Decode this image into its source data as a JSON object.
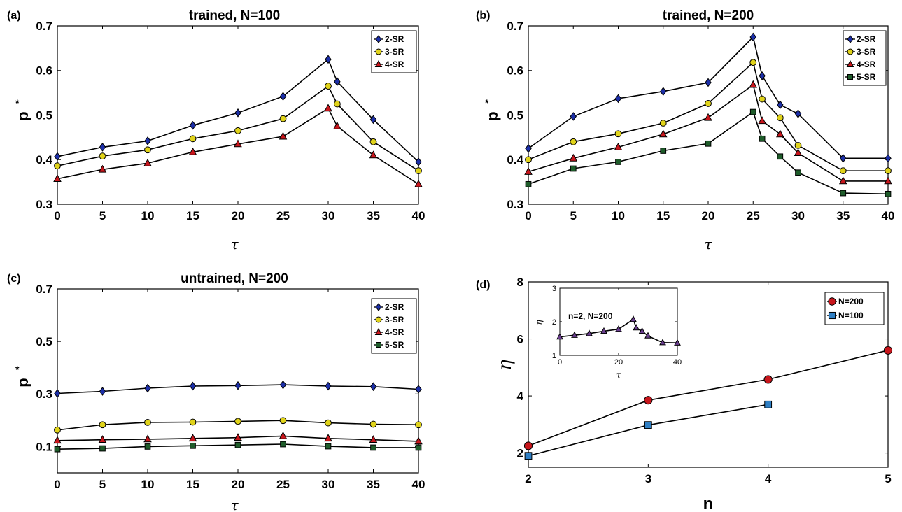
{
  "figure": {
    "colors": {
      "blue": "#1c2fa8",
      "yellow": "#e0d31a",
      "red": "#c8161c",
      "green": "#1e5c2a",
      "purple": "#6b3f8f",
      "lightblue": "#2f7fc4",
      "line": "#000000"
    }
  },
  "chart_data": [
    {
      "type": "line",
      "panel_label": "(a)",
      "title": "trained, N=100",
      "xlabel": "τ",
      "ylabel": "p",
      "ylabel_sup": "*",
      "xlim": [
        0,
        40
      ],
      "ylim": [
        0.3,
        0.7
      ],
      "xticks": [
        0,
        5,
        10,
        15,
        20,
        25,
        30,
        35,
        40
      ],
      "yticks": [
        0.3,
        0.4,
        0.5,
        0.6,
        0.7
      ],
      "legend_position": "top-right",
      "series": [
        {
          "name": "2-SR",
          "marker": "diamond",
          "color": "blue",
          "x": [
            0,
            5,
            10,
            15,
            20,
            25,
            30,
            31,
            35,
            40
          ],
          "y": [
            0.407,
            0.428,
            0.442,
            0.477,
            0.505,
            0.542,
            0.625,
            0.575,
            0.49,
            0.395
          ]
        },
        {
          "name": "3-SR",
          "marker": "circle",
          "color": "yellow",
          "x": [
            0,
            5,
            10,
            15,
            20,
            25,
            30,
            31,
            35,
            40
          ],
          "y": [
            0.386,
            0.408,
            0.422,
            0.447,
            0.465,
            0.492,
            0.565,
            0.525,
            0.44,
            0.375
          ]
        },
        {
          "name": "4-SR",
          "marker": "triangle",
          "color": "red",
          "x": [
            0,
            5,
            10,
            15,
            20,
            25,
            30,
            31,
            35,
            40
          ],
          "y": [
            0.357,
            0.378,
            0.392,
            0.417,
            0.435,
            0.452,
            0.515,
            0.475,
            0.41,
            0.345
          ]
        }
      ]
    },
    {
      "type": "line",
      "panel_label": "(b)",
      "title": "trained, N=200",
      "xlabel": "τ",
      "ylabel": "p",
      "ylabel_sup": "*",
      "xlim": [
        0,
        40
      ],
      "ylim": [
        0.3,
        0.7
      ],
      "xticks": [
        0,
        5,
        10,
        15,
        20,
        25,
        30,
        35,
        40
      ],
      "yticks": [
        0.3,
        0.4,
        0.5,
        0.6,
        0.7
      ],
      "legend_position": "top-right",
      "series": [
        {
          "name": "2-SR",
          "marker": "diamond",
          "color": "blue",
          "x": [
            0,
            5,
            10,
            15,
            20,
            25,
            26,
            28,
            30,
            35,
            40
          ],
          "y": [
            0.425,
            0.497,
            0.537,
            0.553,
            0.573,
            0.675,
            0.588,
            0.523,
            0.503,
            0.403,
            0.403
          ]
        },
        {
          "name": "3-SR",
          "marker": "circle",
          "color": "yellow",
          "x": [
            0,
            5,
            10,
            15,
            20,
            25,
            26,
            28,
            30,
            35,
            40
          ],
          "y": [
            0.4,
            0.44,
            0.458,
            0.482,
            0.526,
            0.618,
            0.536,
            0.494,
            0.432,
            0.375,
            0.375
          ]
        },
        {
          "name": "4-SR",
          "marker": "triangle",
          "color": "red",
          "x": [
            0,
            5,
            10,
            15,
            20,
            25,
            26,
            28,
            30,
            35,
            40
          ],
          "y": [
            0.373,
            0.403,
            0.428,
            0.457,
            0.494,
            0.568,
            0.487,
            0.457,
            0.415,
            0.352,
            0.352
          ]
        },
        {
          "name": "5-SR",
          "marker": "square",
          "color": "green",
          "x": [
            0,
            5,
            10,
            15,
            20,
            25,
            26,
            28,
            30,
            35,
            40
          ],
          "y": [
            0.345,
            0.38,
            0.395,
            0.42,
            0.436,
            0.507,
            0.447,
            0.407,
            0.371,
            0.325,
            0.323
          ]
        }
      ]
    },
    {
      "type": "line",
      "panel_label": "(c)",
      "title": "untrained, N=200",
      "xlabel": "τ",
      "ylabel": "p",
      "ylabel_sup": "*",
      "xlim": [
        0,
        40
      ],
      "ylim": [
        0.0,
        0.7
      ],
      "xticks": [
        0,
        5,
        10,
        15,
        20,
        25,
        30,
        35,
        40
      ],
      "yticks": [
        0.1,
        0.3,
        0.5,
        0.7
      ],
      "legend_position": "top-right",
      "series": [
        {
          "name": "2-SR",
          "marker": "diamond",
          "color": "blue",
          "x": [
            0,
            5,
            10,
            15,
            20,
            25,
            30,
            35,
            40
          ],
          "y": [
            0.302,
            0.31,
            0.322,
            0.33,
            0.332,
            0.335,
            0.33,
            0.328,
            0.318
          ]
        },
        {
          "name": "3-SR",
          "marker": "circle",
          "color": "yellow",
          "x": [
            0,
            5,
            10,
            15,
            20,
            25,
            30,
            35,
            40
          ],
          "y": [
            0.163,
            0.183,
            0.192,
            0.193,
            0.196,
            0.199,
            0.19,
            0.185,
            0.183
          ]
        },
        {
          "name": "4-SR",
          "marker": "triangle",
          "color": "red",
          "x": [
            0,
            5,
            10,
            15,
            20,
            25,
            30,
            35,
            40
          ],
          "y": [
            0.123,
            0.126,
            0.128,
            0.131,
            0.134,
            0.14,
            0.131,
            0.126,
            0.12
          ]
        },
        {
          "name": "5-SR",
          "marker": "square",
          "color": "green",
          "x": [
            0,
            5,
            10,
            15,
            20,
            25,
            30,
            35,
            40
          ],
          "y": [
            0.09,
            0.093,
            0.1,
            0.103,
            0.106,
            0.109,
            0.101,
            0.096,
            0.096
          ]
        }
      ]
    },
    {
      "type": "line",
      "panel_label": "(d)",
      "title": "",
      "xlabel": "n",
      "ylabel": "η",
      "xlim": [
        2,
        5
      ],
      "ylim": [
        1.5,
        8
      ],
      "xticks": [
        2,
        3,
        4,
        5
      ],
      "yticks": [
        2,
        4,
        6,
        8
      ],
      "legend_position": "top-right",
      "series": [
        {
          "name": "N=200",
          "marker": "circle",
          "color": "red",
          "x": [
            2,
            3,
            4,
            5
          ],
          "y": [
            2.25,
            3.85,
            4.58,
            5.6
          ]
        },
        {
          "name": "N=100",
          "marker": "square",
          "color": "lightblue",
          "x": [
            2,
            3,
            4
          ],
          "y": [
            1.9,
            2.98,
            3.7
          ]
        }
      ],
      "inset": {
        "type": "line",
        "annotation": "n=2, N=200",
        "xlabel": "τ",
        "ylabel": "η",
        "xlim": [
          0,
          40
        ],
        "ylim": [
          1,
          3
        ],
        "xticks": [
          0,
          20,
          40
        ],
        "yticks": [
          1,
          2,
          3
        ],
        "series": [
          {
            "marker": "triangle",
            "color": "purple",
            "x": [
              0,
              5,
              10,
              15,
              20,
              25,
              26,
              28,
              30,
              35,
              40
            ],
            "y": [
              1.55,
              1.6,
              1.65,
              1.72,
              1.78,
              2.07,
              1.82,
              1.72,
              1.58,
              1.38,
              1.37
            ]
          }
        ]
      }
    }
  ]
}
